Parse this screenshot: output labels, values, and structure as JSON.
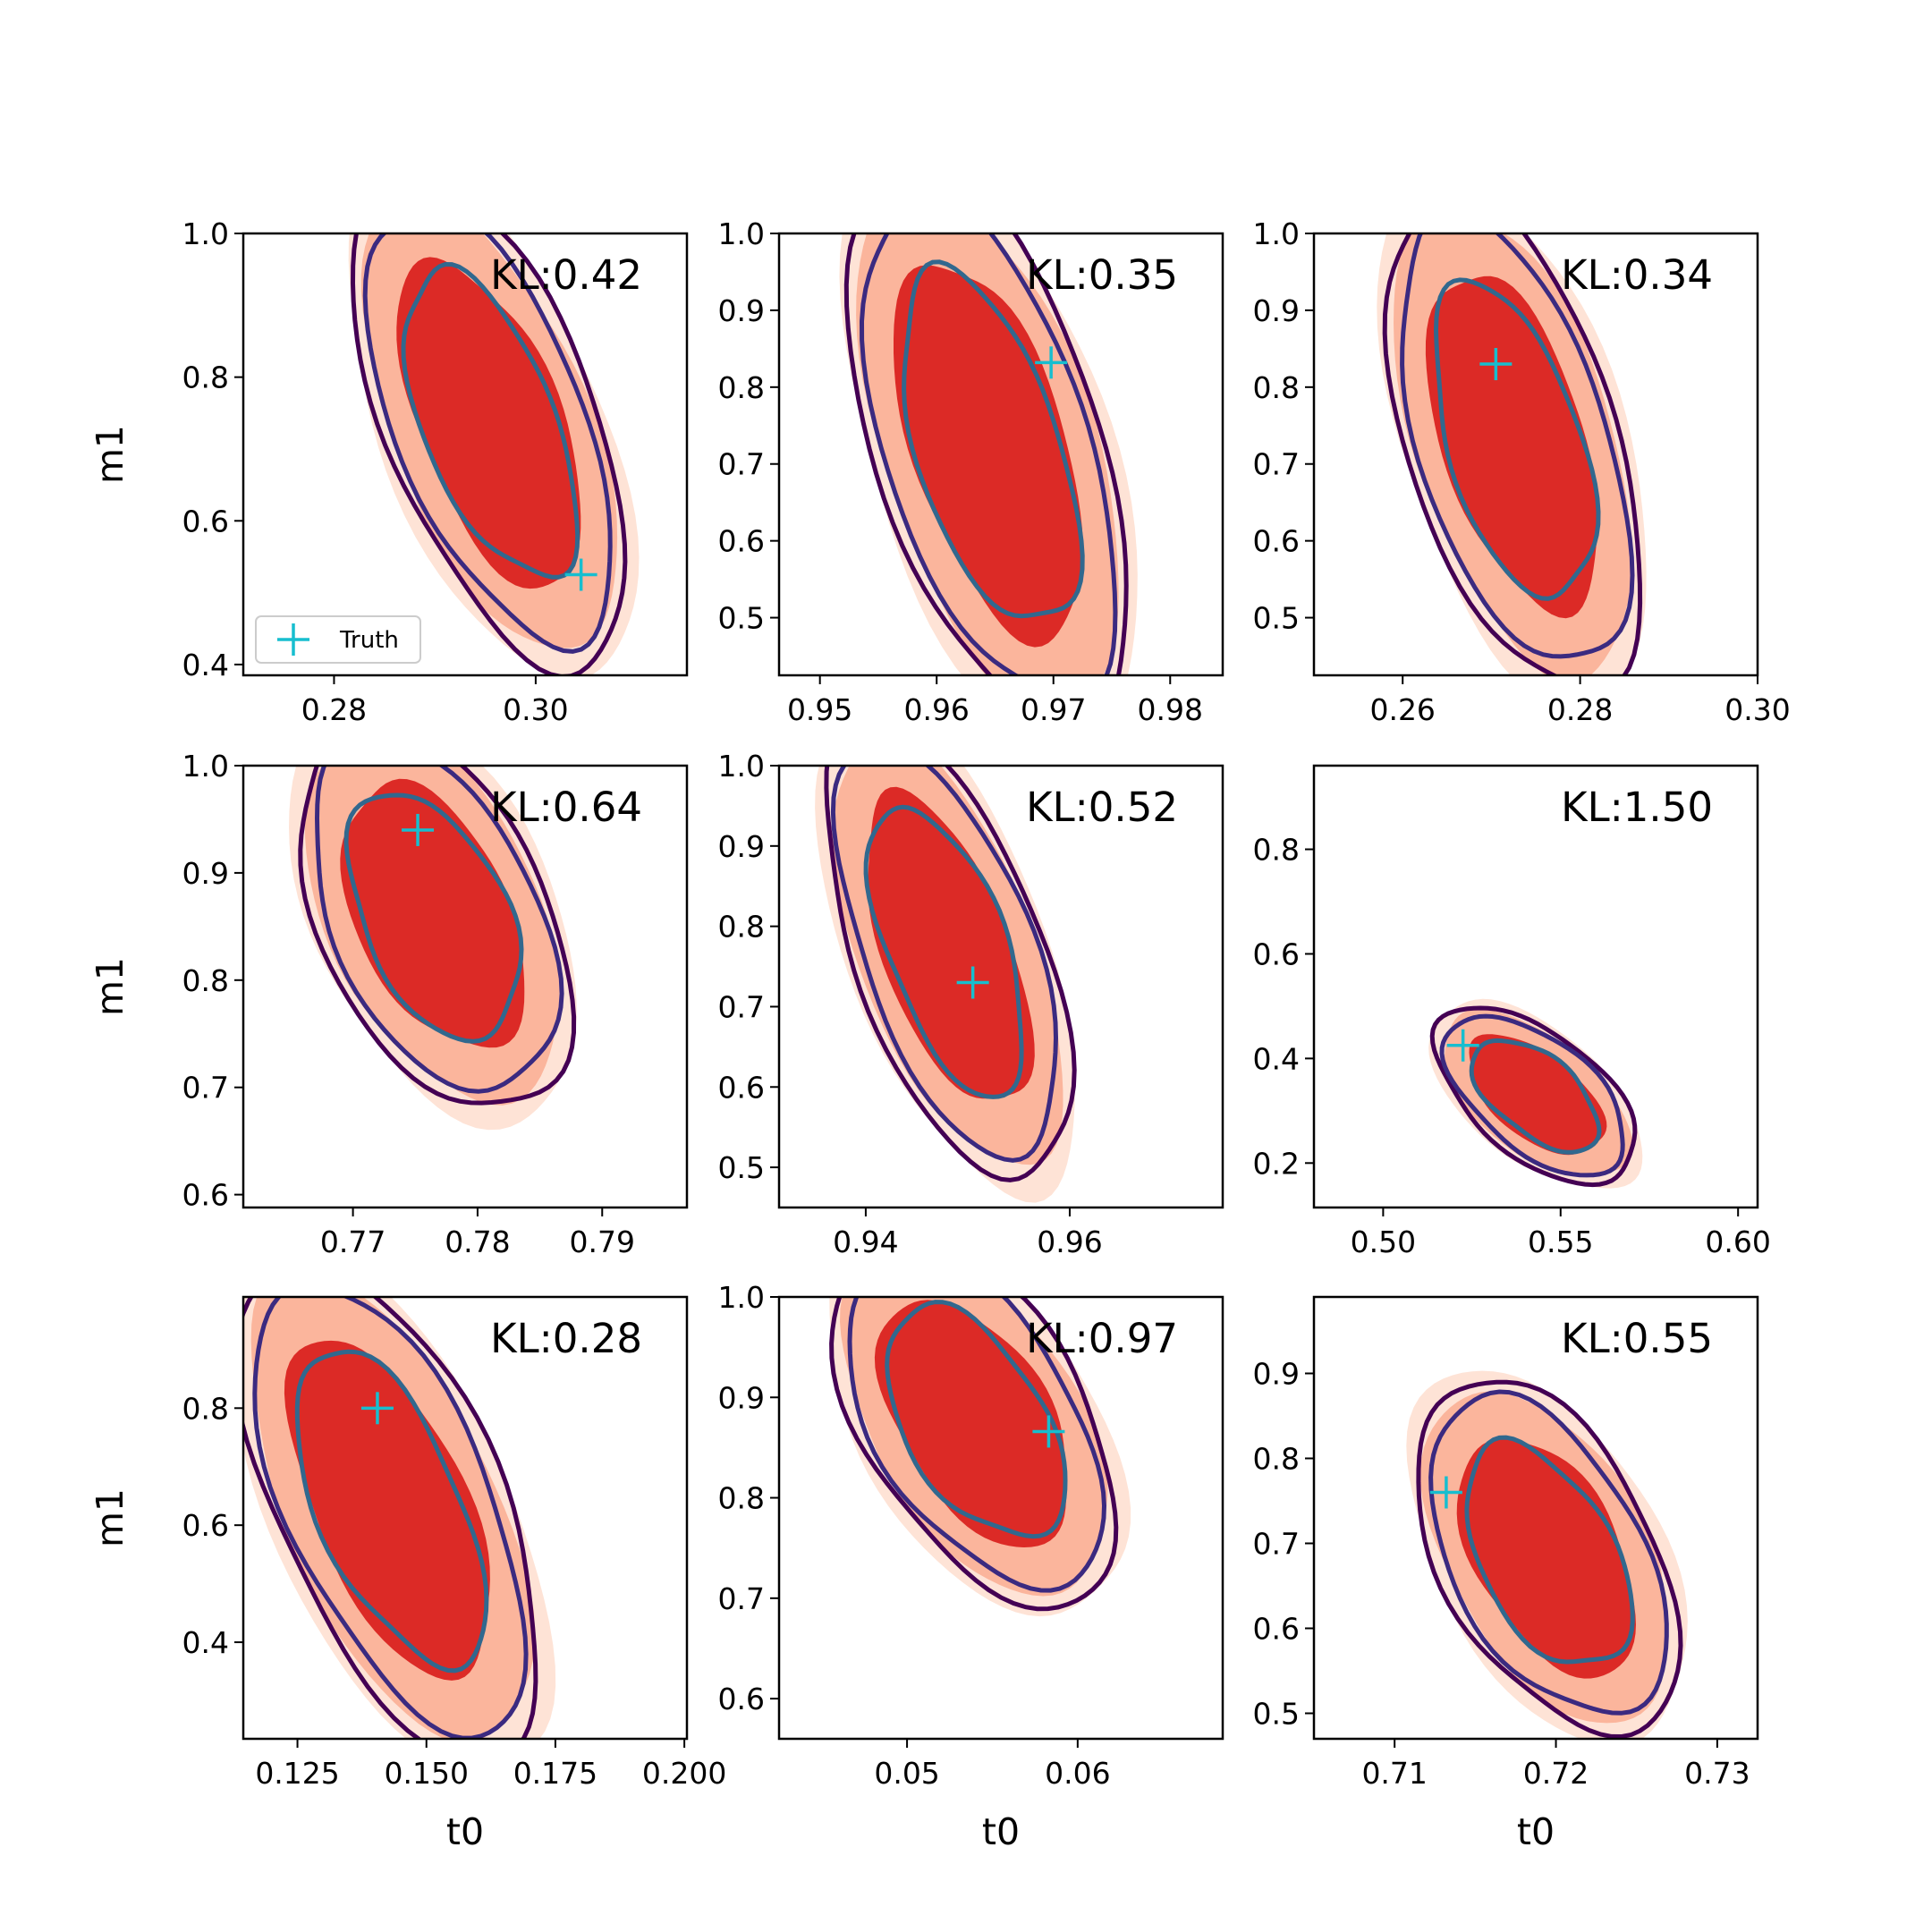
{
  "chart_data": [
    {
      "type": "contour",
      "xlabel": "",
      "ylabel": "m1",
      "x_ticks": [
        0.28,
        0.3
      ],
      "x_tick_labels": [
        "0.28",
        "0.30"
      ],
      "xlim": [
        0.271,
        0.315
      ],
      "y_ticks": [
        0.4,
        0.6,
        0.8,
        1.0
      ],
      "y_tick_labels": [
        "0.4",
        "0.6",
        "0.8",
        "1.0"
      ],
      "ylim": [
        0.385,
        1.0
      ],
      "kl_label": "KL:0.42",
      "truth": {
        "x": 0.3045,
        "y": 0.525
      },
      "legend": {
        "marker_label": "Truth",
        "placement": "lower-left"
      },
      "contours": {
        "center": [
          0.2955,
          0.735
        ],
        "dx": 0.0085,
        "dy": 0.26,
        "tilt": -0.78
      }
    },
    {
      "type": "contour",
      "xlabel": "",
      "ylabel": "",
      "x_ticks": [
        0.95,
        0.96,
        0.97,
        0.98
      ],
      "x_tick_labels": [
        "0.95",
        "0.96",
        "0.97",
        "0.98"
      ],
      "xlim": [
        0.9465,
        0.9845
      ],
      "y_ticks": [
        0.5,
        0.6,
        0.7,
        0.8,
        0.9,
        1.0
      ],
      "y_tick_labels": [
        "0.5",
        "0.6",
        "0.7",
        "0.8",
        "0.9",
        "1.0"
      ],
      "ylim": [
        0.425,
        1.0
      ],
      "kl_label": "KL:0.35",
      "truth": {
        "x": 0.9698,
        "y": 0.832
      },
      "contours": {
        "center": [
          0.9645,
          0.72
        ],
        "dx": 0.0078,
        "dy": 0.28,
        "tilt": -0.7
      }
    },
    {
      "type": "contour",
      "xlabel": "",
      "ylabel": "",
      "x_ticks": [
        0.26,
        0.28,
        0.3
      ],
      "x_tick_labels": [
        "0.26",
        "0.28",
        "0.30"
      ],
      "xlim": [
        0.25,
        0.3
      ],
      "y_ticks": [
        0.5,
        0.6,
        0.7,
        0.8,
        0.9,
        1.0
      ],
      "y_tick_labels": [
        "0.5",
        "0.6",
        "0.7",
        "0.8",
        "0.9",
        "1.0"
      ],
      "ylim": [
        0.425,
        1.0
      ],
      "kl_label": "KL:0.34",
      "truth": {
        "x": 0.2705,
        "y": 0.83
      },
      "contours": {
        "center": [
          0.2725,
          0.73
        ],
        "dx": 0.0095,
        "dy": 0.25,
        "tilt": -0.65
      }
    },
    {
      "type": "contour",
      "xlabel": "",
      "ylabel": "m1",
      "x_ticks": [
        0.77,
        0.78,
        0.79
      ],
      "x_tick_labels": [
        "0.77",
        "0.78",
        "0.79"
      ],
      "xlim": [
        0.7612,
        0.7968
      ],
      "y_ticks": [
        0.6,
        0.7,
        0.8,
        0.9,
        1.0
      ],
      "y_tick_labels": [
        "0.6",
        "0.7",
        "0.8",
        "0.9",
        "1.0"
      ],
      "ylim": [
        0.588,
        1.0
      ],
      "kl_label": "KL:0.64",
      "truth": {
        "x": 0.7752,
        "y": 0.94
      },
      "contours": {
        "center": [
          0.7765,
          0.86
        ],
        "dx": 0.0075,
        "dy": 0.14,
        "tilt": -0.55
      }
    },
    {
      "type": "contour",
      "xlabel": "",
      "ylabel": "",
      "x_ticks": [
        0.94,
        0.96
      ],
      "x_tick_labels": [
        "0.94",
        "0.96"
      ],
      "xlim": [
        0.9315,
        0.975
      ],
      "y_ticks": [
        0.5,
        0.6,
        0.7,
        0.8,
        0.9,
        1.0
      ],
      "y_tick_labels": [
        "0.5",
        "0.6",
        "0.7",
        "0.8",
        "0.9",
        "1.0"
      ],
      "ylim": [
        0.45,
        1.0
      ],
      "kl_label": "KL:0.52",
      "truth": {
        "x": 0.9505,
        "y": 0.73
      },
      "contours": {
        "center": [
          0.948,
          0.77
        ],
        "dx": 0.0075,
        "dy": 0.22,
        "tilt": -0.8
      }
    },
    {
      "type": "contour",
      "xlabel": "",
      "ylabel": "",
      "x_ticks": [
        0.5,
        0.55,
        0.6
      ],
      "x_tick_labels": [
        "0.50",
        "0.55",
        "0.60"
      ],
      "xlim": [
        0.4805,
        0.6055
      ],
      "y_ticks": [
        0.2,
        0.4,
        0.6,
        0.8
      ],
      "y_tick_labels": [
        "0.2",
        "0.4",
        "0.6",
        "0.8"
      ],
      "ylim": [
        0.115,
        0.96
      ],
      "kl_label": "KL:1.50",
      "truth": {
        "x": 0.5225,
        "y": 0.425
      },
      "contours": {
        "center": [
          0.543,
          0.33
        ],
        "dx": 0.018,
        "dy": 0.13,
        "tilt": -0.75
      }
    },
    {
      "type": "contour",
      "xlabel": "t0",
      "ylabel": "m1",
      "x_ticks": [
        0.125,
        0.15,
        0.175,
        0.2
      ],
      "x_tick_labels": [
        "0.125",
        "0.150",
        "0.175",
        "0.200"
      ],
      "xlim": [
        0.1145,
        0.2005
      ],
      "y_ticks": [
        0.4,
        0.6,
        0.8
      ],
      "y_tick_labels": [
        "0.4",
        "0.6",
        "0.8"
      ],
      "ylim": [
        0.235,
        0.99
      ],
      "kl_label": "KL:0.28",
      "truth": {
        "x": 0.1405,
        "y": 0.8
      },
      "contours": {
        "center": [
          0.143,
          0.63
        ],
        "dx": 0.018,
        "dy": 0.33,
        "tilt": -0.82
      }
    },
    {
      "type": "contour",
      "xlabel": "t0",
      "ylabel": "",
      "x_ticks": [
        0.05,
        0.06
      ],
      "x_tick_labels": [
        "0.05",
        "0.06"
      ],
      "xlim": [
        0.0425,
        0.0685
      ],
      "y_ticks": [
        0.6,
        0.7,
        0.8,
        0.9,
        1.0
      ],
      "y_tick_labels": [
        "0.6",
        "0.7",
        "0.8",
        "0.9",
        "1.0"
      ],
      "ylim": [
        0.56,
        1.0
      ],
      "kl_label": "KL:0.97",
      "truth": {
        "x": 0.0583,
        "y": 0.866
      },
      "contours": {
        "center": [
          0.054,
          0.875
        ],
        "dx": 0.0055,
        "dy": 0.14,
        "tilt": -0.65
      }
    },
    {
      "type": "contour",
      "xlabel": "t0",
      "ylabel": "",
      "x_ticks": [
        0.71,
        0.72,
        0.73
      ],
      "x_tick_labels": [
        "0.71",
        "0.72",
        "0.73"
      ],
      "xlim": [
        0.705,
        0.7325
      ],
      "y_ticks": [
        0.5,
        0.6,
        0.7,
        0.8,
        0.9
      ],
      "y_tick_labels": [
        "0.5",
        "0.6",
        "0.7",
        "0.8",
        "0.9"
      ],
      "ylim": [
        0.47,
        0.99
      ],
      "kl_label": "KL:0.55",
      "truth": {
        "x": 0.7132,
        "y": 0.76
      },
      "contours": {
        "center": [
          0.7195,
          0.685
        ],
        "dx": 0.0055,
        "dy": 0.16,
        "tilt": -0.6
      }
    }
  ],
  "colors": {
    "fill_outer": "#fee3d6",
    "fill_mid": "#fbb59c",
    "fill_inner": "#dc2a26",
    "line_outer": "#440154",
    "line_mid": "#3b2a80",
    "line_inner": "#31688e",
    "truth_marker": "#17becf"
  }
}
